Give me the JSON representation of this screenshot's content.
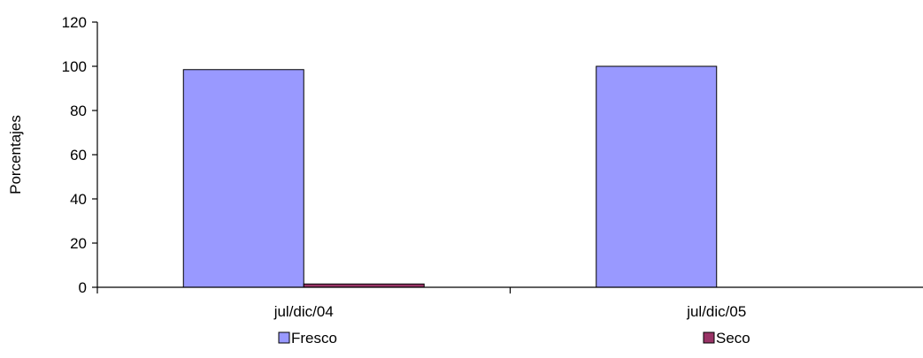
{
  "chart_data": {
    "type": "bar",
    "categories": [
      "jul/dic/04",
      "jul/dic/05"
    ],
    "series": [
      {
        "name": "Fresco",
        "color": "#9999FF",
        "values": [
          98.5,
          100
        ]
      },
      {
        "name": "Seco",
        "color": "#993366",
        "values": [
          1.5,
          0
        ]
      }
    ],
    "ylabel": "Porcentajes",
    "ylim": [
      0,
      120
    ],
    "yticks": [
      0,
      20,
      40,
      60,
      80,
      100,
      120
    ],
    "grid": false,
    "legend_position": "bottom"
  }
}
